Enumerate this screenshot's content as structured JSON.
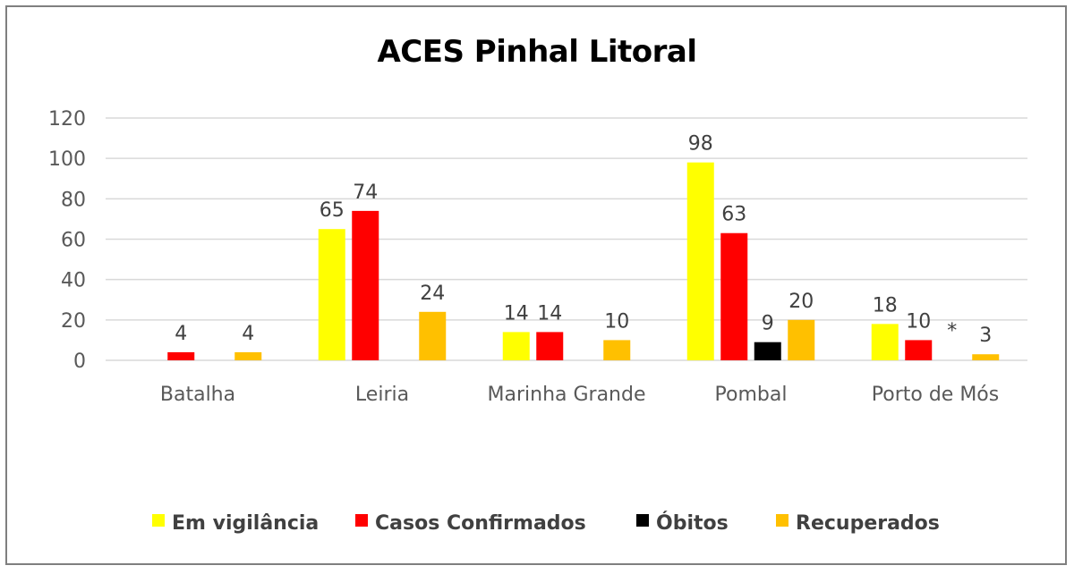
{
  "chart_data": {
    "type": "bar",
    "title": "ACES Pinhal Litoral",
    "categories": [
      "Batalha",
      "Leiria",
      "Marinha Grande",
      "Pombal",
      "Porto de Mós"
    ],
    "series": [
      {
        "name": "Em vigilância",
        "color": "#ffff00",
        "values": [
          null,
          65,
          14,
          98,
          18
        ]
      },
      {
        "name": "Casos Confirmados",
        "color": "#ff0000",
        "values": [
          4,
          74,
          14,
          63,
          10
        ]
      },
      {
        "name": "Óbitos",
        "color": "#000000",
        "values": [
          null,
          null,
          null,
          9,
          null
        ]
      },
      {
        "name": "Recuperados",
        "color": "#ffc000",
        "values": [
          4,
          24,
          10,
          20,
          3
        ]
      }
    ],
    "annotations": [
      {
        "category": "Porto de Mós",
        "series": "Óbitos",
        "text": "*"
      }
    ],
    "ylim": [
      0,
      120
    ],
    "yticks": [
      0,
      20,
      40,
      60,
      80,
      100,
      120
    ],
    "grid": true,
    "legend": "bottom"
  }
}
